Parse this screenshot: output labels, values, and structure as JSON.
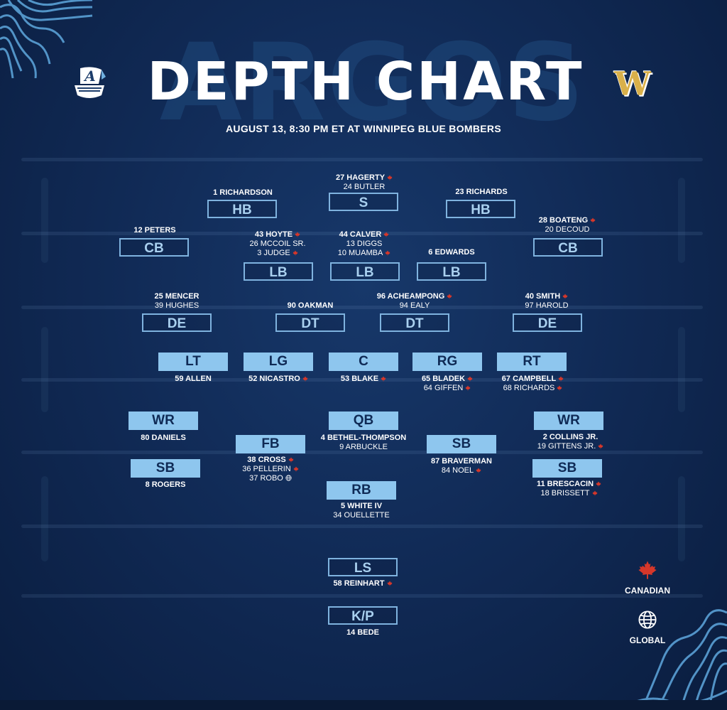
{
  "background_word": "ARGOS",
  "title": "DEPTH CHART",
  "subtitle": "AUGUST 13, 8:30 PM ET AT WINNIPEG BLUE BOMBERS",
  "logos": {
    "left": "argonauts-boat-logo",
    "right": "bombers-w-logo",
    "right_letter": "W"
  },
  "colors": {
    "background": "#112b57",
    "offense_box": "#8ec6ee",
    "defense_border": "#7fb3df",
    "leaf": "#d6372a",
    "bombers_gold": "#d9b04a"
  },
  "legend": {
    "canadian": "CANADIAN",
    "global": "GLOBAL"
  },
  "defense": {
    "hb_left": {
      "label": "HB",
      "players": [
        {
          "name": "1 RICHARDSON",
          "mark": ""
        }
      ]
    },
    "s": {
      "label": "S",
      "players": [
        {
          "name": "27 HAGERTY",
          "mark": "canadian"
        },
        {
          "name": "24 BUTLER",
          "mark": ""
        }
      ]
    },
    "hb_right": {
      "label": "HB",
      "players": [
        {
          "name": "23 RICHARDS",
          "mark": ""
        }
      ]
    },
    "cb_left": {
      "label": "CB",
      "players": [
        {
          "name": "12 PETERS",
          "mark": ""
        }
      ]
    },
    "lb_left": {
      "label": "LB",
      "players": [
        {
          "name": "43 HOYTE",
          "mark": "canadian"
        },
        {
          "name": "26 MCCOIL SR.",
          "mark": ""
        },
        {
          "name": "3 JUDGE",
          "mark": "canadian"
        }
      ]
    },
    "lb_mid": {
      "label": "LB",
      "players": [
        {
          "name": "44 CALVER",
          "mark": "canadian"
        },
        {
          "name": "13 DIGGS",
          "mark": ""
        },
        {
          "name": "10 MUAMBA",
          "mark": "canadian"
        }
      ]
    },
    "lb_right": {
      "label": "LB",
      "players": [
        {
          "name": "6 EDWARDS",
          "mark": ""
        }
      ]
    },
    "cb_right": {
      "label": "CB",
      "players": [
        {
          "name": "28 BOATENG",
          "mark": "canadian"
        },
        {
          "name": "20 DECOUD",
          "mark": ""
        }
      ]
    },
    "de_left": {
      "label": "DE",
      "players": [
        {
          "name": "25 MENCER",
          "mark": ""
        },
        {
          "name": "39 HUGHES",
          "mark": ""
        }
      ]
    },
    "dt_left": {
      "label": "DT",
      "players": [
        {
          "name": "90 OAKMAN",
          "mark": ""
        }
      ]
    },
    "dt_right": {
      "label": "DT",
      "players": [
        {
          "name": "96 ACHEAMPONG",
          "mark": "canadian"
        },
        {
          "name": "94 EALY",
          "mark": ""
        }
      ]
    },
    "de_right": {
      "label": "DE",
      "players": [
        {
          "name": "40 SMITH",
          "mark": "canadian"
        },
        {
          "name": "97 HAROLD",
          "mark": ""
        }
      ]
    }
  },
  "offense": {
    "lt": {
      "label": "LT",
      "players": [
        {
          "name": "59 ALLEN",
          "mark": ""
        }
      ]
    },
    "lg": {
      "label": "LG",
      "players": [
        {
          "name": "52 NICASTRO",
          "mark": "canadian"
        }
      ]
    },
    "c": {
      "label": "C",
      "players": [
        {
          "name": "53 BLAKE",
          "mark": "canadian"
        }
      ]
    },
    "rg": {
      "label": "RG",
      "players": [
        {
          "name": "65 BLADEK",
          "mark": "canadian"
        },
        {
          "name": "64 GIFFEN",
          "mark": "canadian"
        }
      ]
    },
    "rt": {
      "label": "RT",
      "players": [
        {
          "name": "67 CAMPBELL",
          "mark": "canadian"
        },
        {
          "name": "68 RICHARDS",
          "mark": "canadian"
        }
      ]
    },
    "wr_left": {
      "label": "WR",
      "players": [
        {
          "name": "80 DANIELS",
          "mark": ""
        }
      ]
    },
    "qb": {
      "label": "QB",
      "players": [
        {
          "name": "4 BETHEL-THOMPSON",
          "mark": ""
        },
        {
          "name": "9 ARBUCKLE",
          "mark": ""
        }
      ]
    },
    "wr_right": {
      "label": "WR",
      "players": [
        {
          "name": "2 COLLINS JR.",
          "mark": ""
        },
        {
          "name": "19 GITTENS JR.",
          "mark": "canadian"
        }
      ]
    },
    "fb": {
      "label": "FB",
      "players": [
        {
          "name": "38 CROSS",
          "mark": "canadian"
        },
        {
          "name": "36 PELLERIN",
          "mark": "canadian"
        },
        {
          "name": "37 ROBO",
          "mark": "global"
        }
      ]
    },
    "sb_mid": {
      "label": "SB",
      "players": [
        {
          "name": "87 BRAVERMAN",
          "mark": ""
        },
        {
          "name": "84 NOEL",
          "mark": "canadian"
        }
      ]
    },
    "sb_left": {
      "label": "SB",
      "players": [
        {
          "name": "8 ROGERS",
          "mark": ""
        }
      ]
    },
    "sb_right": {
      "label": "SB",
      "players": [
        {
          "name": "11 BRESCACIN",
          "mark": "canadian"
        },
        {
          "name": "18 BRISSETT",
          "mark": "canadian"
        }
      ]
    },
    "rb": {
      "label": "RB",
      "players": [
        {
          "name": "5 WHITE IV",
          "mark": ""
        },
        {
          "name": "34 OUELLETTE",
          "mark": ""
        }
      ]
    }
  },
  "special": {
    "ls": {
      "label": "LS",
      "players": [
        {
          "name": "58 REINHART",
          "mark": "canadian"
        }
      ]
    },
    "kp": {
      "label": "K/P",
      "players": [
        {
          "name": "14 BEDE",
          "mark": ""
        }
      ]
    }
  }
}
